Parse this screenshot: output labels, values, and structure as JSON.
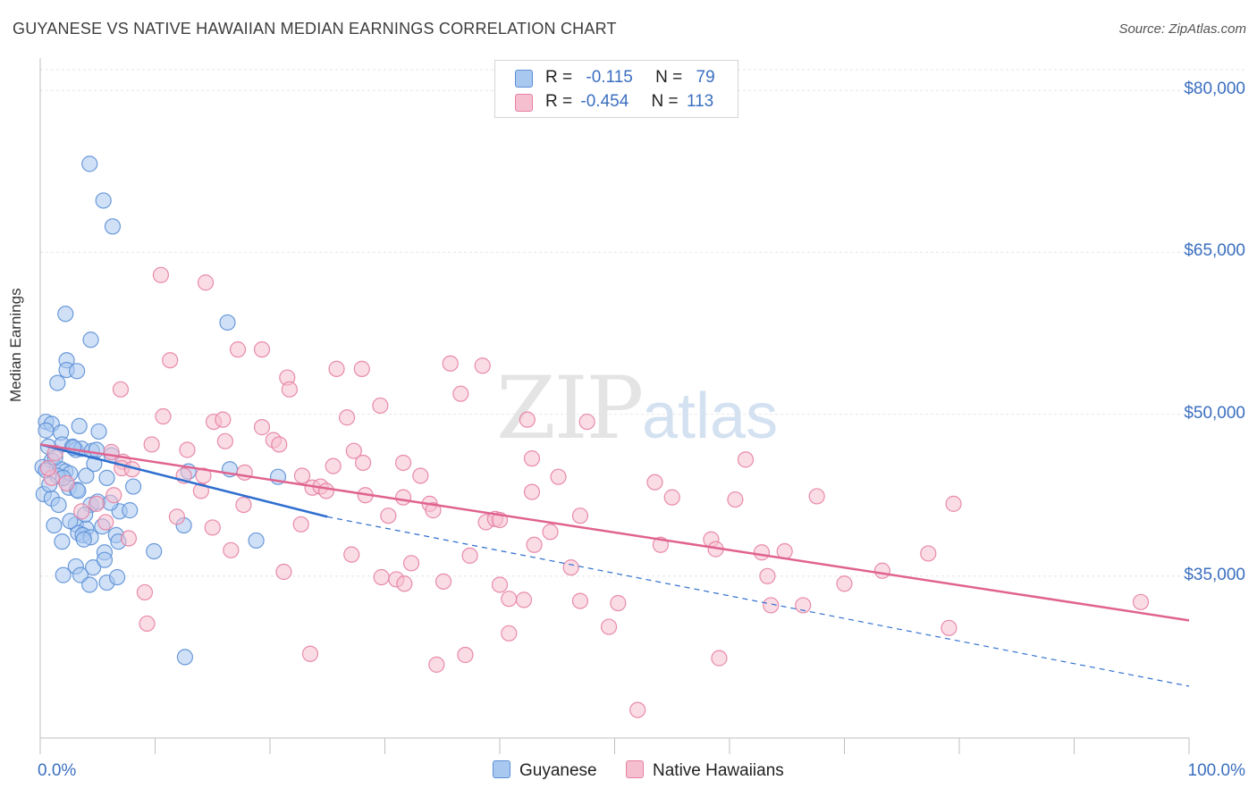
{
  "title": "GUYANESE VS NATIVE HAWAIIAN MEDIAN EARNINGS CORRELATION CHART",
  "source": "Source: ZipAtlas.com",
  "watermark": {
    "zip": "ZIP",
    "atlas": "atlas"
  },
  "legend_stats": [
    {
      "r_label": "R =",
      "r_value": "-0.115",
      "n_label": "N =",
      "n_value": "79",
      "color": "#a9c8f0",
      "edge": "#5b8fd6"
    },
    {
      "r_label": "R =",
      "r_value": "-0.454",
      "n_label": "N =",
      "n_value": "113",
      "color": "#f6bfd0",
      "edge": "#e680a3"
    }
  ],
  "bottom_legend": [
    "Guyanese",
    "Native Hawaiians"
  ],
  "chart_data": {
    "type": "scatter",
    "title": "GUYANESE VS NATIVE HAWAIIAN MEDIAN EARNINGS CORRELATION CHART",
    "xlabel": "",
    "ylabel": "Median Earnings",
    "xlim": [
      0,
      100
    ],
    "ylim": [
      20000,
      83000
    ],
    "x_tick_labels": [
      "0.0%",
      "100.0%"
    ],
    "y_ticks": [
      35000,
      50000,
      65000,
      80000
    ],
    "y_tick_labels": [
      "$35,000",
      "$50,000",
      "$65,000",
      "$80,000"
    ],
    "grid": true,
    "legend_position": "top-center",
    "series": [
      {
        "name": "Guyanese",
        "color": "#5b8fd6",
        "fill": "#a9c8f0",
        "trend": {
          "x": [
            0,
            25
          ],
          "y": [
            47200,
            40500
          ],
          "dashed_extension": {
            "x": [
              25,
              100
            ],
            "y": [
              40500,
              24800
            ]
          },
          "color": "#2f6fcf"
        },
        "points": [
          [
            4.3,
            73200
          ],
          [
            5.5,
            69800
          ],
          [
            6.3,
            67400
          ],
          [
            16.3,
            58500
          ],
          [
            2.2,
            59300
          ],
          [
            4.4,
            56900
          ],
          [
            2.3,
            55000
          ],
          [
            2.3,
            54100
          ],
          [
            3.2,
            54000
          ],
          [
            1.5,
            52900
          ],
          [
            0.5,
            49300
          ],
          [
            1.0,
            49100
          ],
          [
            0.5,
            48500
          ],
          [
            3.4,
            48900
          ],
          [
            5.1,
            48400
          ],
          [
            1.8,
            48300
          ],
          [
            1.9,
            47200
          ],
          [
            2.8,
            47000
          ],
          [
            3.1,
            46700
          ],
          [
            3.6,
            46800
          ],
          [
            4.5,
            46600
          ],
          [
            4.9,
            46700
          ],
          [
            6.2,
            46200
          ],
          [
            1.0,
            45700
          ],
          [
            0.2,
            45100
          ],
          [
            0.5,
            44800
          ],
          [
            1.8,
            44900
          ],
          [
            2.2,
            44700
          ],
          [
            2.6,
            44500
          ],
          [
            1.5,
            44300
          ],
          [
            4.0,
            44300
          ],
          [
            5.8,
            44100
          ],
          [
            12.9,
            44700
          ],
          [
            16.5,
            44900
          ],
          [
            20.7,
            44200
          ],
          [
            0.3,
            42600
          ],
          [
            1.0,
            42200
          ],
          [
            2.5,
            43200
          ],
          [
            3.2,
            43000
          ],
          [
            8.1,
            43300
          ],
          [
            4.4,
            41600
          ],
          [
            6.9,
            41000
          ],
          [
            7.8,
            41100
          ],
          [
            1.2,
            39700
          ],
          [
            3.1,
            39800
          ],
          [
            4.0,
            39400
          ],
          [
            3.3,
            39000
          ],
          [
            3.7,
            38800
          ],
          [
            4.4,
            38600
          ],
          [
            5.4,
            39600
          ],
          [
            6.6,
            38800
          ],
          [
            6.8,
            38200
          ],
          [
            9.9,
            37300
          ],
          [
            12.5,
            39700
          ],
          [
            18.8,
            38300
          ],
          [
            1.9,
            38200
          ],
          [
            3.8,
            38400
          ],
          [
            5.6,
            37200
          ],
          [
            3.1,
            35900
          ],
          [
            4.6,
            35800
          ],
          [
            5.6,
            36500
          ],
          [
            2.0,
            35100
          ],
          [
            3.5,
            35100
          ],
          [
            4.3,
            34200
          ],
          [
            5.8,
            34400
          ],
          [
            6.7,
            34900
          ],
          [
            12.6,
            27500
          ],
          [
            0.7,
            47000
          ],
          [
            1.3,
            46000
          ],
          [
            2.0,
            44100
          ],
          [
            2.9,
            46900
          ],
          [
            4.7,
            45400
          ],
          [
            0.8,
            43500
          ],
          [
            3.3,
            42900
          ],
          [
            1.6,
            41600
          ],
          [
            2.6,
            40100
          ],
          [
            5.0,
            41900
          ],
          [
            3.9,
            40700
          ],
          [
            6.1,
            41800
          ]
        ]
      },
      {
        "name": "Native Hawaiians",
        "color": "#e680a3",
        "fill": "#f6bfd0",
        "trend": {
          "x": [
            0,
            100
          ],
          "y": [
            47200,
            30900
          ],
          "color": "#e0638f"
        },
        "points": [
          [
            10.5,
            62900
          ],
          [
            14.4,
            62200
          ],
          [
            11.3,
            55000
          ],
          [
            17.2,
            56000
          ],
          [
            19.3,
            56000
          ],
          [
            21.5,
            53400
          ],
          [
            21.7,
            52300
          ],
          [
            25.8,
            54200
          ],
          [
            28.0,
            54200
          ],
          [
            35.7,
            54700
          ],
          [
            38.5,
            54500
          ],
          [
            36.6,
            51900
          ],
          [
            7.0,
            52300
          ],
          [
            10.7,
            49800
          ],
          [
            15.1,
            49300
          ],
          [
            15.9,
            49500
          ],
          [
            26.7,
            49700
          ],
          [
            29.6,
            50800
          ],
          [
            42.4,
            49500
          ],
          [
            47.6,
            49300
          ],
          [
            19.3,
            48800
          ],
          [
            20.3,
            47600
          ],
          [
            16.1,
            47500
          ],
          [
            6.2,
            46500
          ],
          [
            9.7,
            47200
          ],
          [
            12.8,
            46700
          ],
          [
            20.8,
            47200
          ],
          [
            27.3,
            46600
          ],
          [
            28.1,
            45500
          ],
          [
            31.6,
            45500
          ],
          [
            7.2,
            45600
          ],
          [
            25.5,
            45200
          ],
          [
            42.8,
            45900
          ],
          [
            61.4,
            45800
          ],
          [
            7.1,
            45000
          ],
          [
            12.5,
            44300
          ],
          [
            14.2,
            44300
          ],
          [
            17.8,
            44600
          ],
          [
            22.8,
            44300
          ],
          [
            33.1,
            44300
          ],
          [
            45.1,
            44200
          ],
          [
            53.5,
            43700
          ],
          [
            23.7,
            43200
          ],
          [
            24.4,
            43300
          ],
          [
            24.9,
            42900
          ],
          [
            28.3,
            42500
          ],
          [
            31.6,
            42300
          ],
          [
            42.8,
            42800
          ],
          [
            55.0,
            42300
          ],
          [
            60.5,
            42100
          ],
          [
            67.6,
            42400
          ],
          [
            79.5,
            41700
          ],
          [
            14.0,
            42900
          ],
          [
            4.9,
            41700
          ],
          [
            6.4,
            42500
          ],
          [
            17.7,
            41600
          ],
          [
            33.9,
            41700
          ],
          [
            34.2,
            41100
          ],
          [
            30.3,
            40600
          ],
          [
            38.8,
            40000
          ],
          [
            39.6,
            40300
          ],
          [
            40.0,
            40200
          ],
          [
            47.0,
            40600
          ],
          [
            15.0,
            39500
          ],
          [
            22.7,
            39800
          ],
          [
            44.4,
            39100
          ],
          [
            5.7,
            40000
          ],
          [
            54.0,
            37900
          ],
          [
            58.4,
            38400
          ],
          [
            58.8,
            37500
          ],
          [
            46.2,
            35800
          ],
          [
            43.0,
            37900
          ],
          [
            62.8,
            37200
          ],
          [
            64.8,
            37300
          ],
          [
            77.3,
            37100
          ],
          [
            37.4,
            36900
          ],
          [
            27.1,
            37000
          ],
          [
            16.6,
            37400
          ],
          [
            7.7,
            38500
          ],
          [
            32.3,
            36200
          ],
          [
            21.2,
            35400
          ],
          [
            29.7,
            34900
          ],
          [
            31.0,
            34700
          ],
          [
            31.7,
            34300
          ],
          [
            35.1,
            34500
          ],
          [
            40.0,
            34200
          ],
          [
            63.3,
            35000
          ],
          [
            73.3,
            35500
          ],
          [
            70.0,
            34300
          ],
          [
            9.1,
            33500
          ],
          [
            40.8,
            32900
          ],
          [
            42.1,
            32800
          ],
          [
            47.0,
            32700
          ],
          [
            50.3,
            32500
          ],
          [
            63.6,
            32300
          ],
          [
            66.4,
            32300
          ],
          [
            95.8,
            32600
          ],
          [
            9.3,
            30600
          ],
          [
            49.5,
            30300
          ],
          [
            40.8,
            29700
          ],
          [
            79.1,
            30200
          ],
          [
            23.5,
            27800
          ],
          [
            37.0,
            27700
          ],
          [
            59.1,
            27400
          ],
          [
            34.5,
            26800
          ],
          [
            52.0,
            22600
          ],
          [
            3.6,
            41000
          ],
          [
            1.0,
            44100
          ],
          [
            2.3,
            43600
          ],
          [
            1.3,
            46400
          ],
          [
            0.7,
            45000
          ],
          [
            8.0,
            44900
          ],
          [
            11.9,
            40500
          ]
        ]
      }
    ]
  }
}
